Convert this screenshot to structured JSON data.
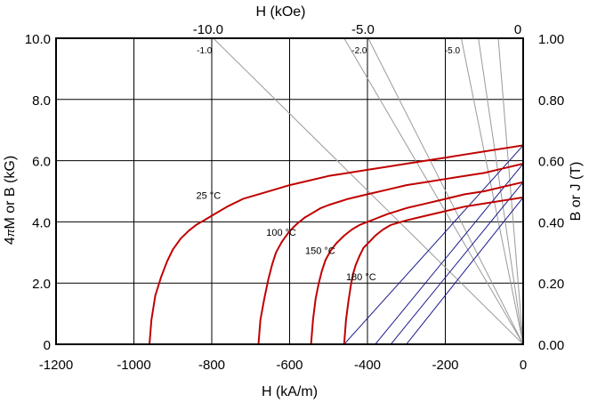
{
  "chart_data": {
    "type": "line",
    "title": "",
    "xlabel": "H (kA/m)",
    "x2label": "H (kOe)",
    "ylabel": "4πM or B (kG)",
    "ylabel_prefix": "4",
    "ylabel_pi": "π",
    "ylabel_suffix": "M or B (kG)",
    "y2label": "B or J  (T)",
    "xlim": [
      -1200,
      0
    ],
    "ylim": [
      0,
      10
    ],
    "x2lim": [
      -15.08,
      0
    ],
    "y2lim": [
      0,
      1
    ],
    "grid": true,
    "x_ticks": [
      -1200,
      -1000,
      -800,
      -600,
      -400,
      -200,
      0
    ],
    "x_tick_labels": [
      "-1200",
      "-1000",
      "-800",
      "-600",
      "-400",
      "-200",
      "0"
    ],
    "y_ticks": [
      0,
      2,
      4,
      6,
      8,
      10
    ],
    "y_tick_labels": [
      "0",
      "2.0",
      "4.0",
      "6.0",
      "8.0",
      "10.0"
    ],
    "x2_ticks": [
      -10,
      -5,
      0
    ],
    "x2_tick_labels": [
      "-10.0",
      "-5.0",
      "0"
    ],
    "y2_ticks": [
      0,
      0.2,
      0.4,
      0.6,
      0.8,
      1.0
    ],
    "y2_tick_labels": [
      "0.00",
      "0.20",
      "0.40",
      "0.60",
      "0.80",
      "1.00"
    ],
    "load_lines": [
      {
        "label": "-1.0",
        "x_at_top": -796
      },
      {
        "label": "-2.0",
        "x_at_top": -398
      },
      {
        "label": "-5.0",
        "x_at_top": -159
      }
    ],
    "extra_load_lines_x_at_top": [
      -460,
      -115,
      -64
    ],
    "series": [
      {
        "name": "25 °C",
        "color": "#c00000",
        "x": [
          -960,
          -955,
          -945,
          -930,
          -915,
          -900,
          -880,
          -860,
          -840,
          -820,
          -800,
          -760,
          -720,
          -680,
          -640,
          -600,
          -550,
          -500,
          -450,
          -400,
          -350,
          -300,
          -250,
          -200,
          -150,
          -100,
          -50,
          0
        ],
        "y": [
          0,
          0.8,
          1.6,
          2.2,
          2.7,
          3.1,
          3.45,
          3.7,
          3.9,
          4.05,
          4.2,
          4.5,
          4.75,
          4.9,
          5.05,
          5.2,
          5.35,
          5.5,
          5.6,
          5.7,
          5.8,
          5.9,
          6.0,
          6.1,
          6.2,
          6.3,
          6.4,
          6.5
        ]
      },
      {
        "name": "100 °C",
        "color": "#c00000",
        "x": [
          -680,
          -675,
          -665,
          -655,
          -645,
          -635,
          -620,
          -600,
          -580,
          -560,
          -540,
          -520,
          -500,
          -450,
          -400,
          -350,
          -300,
          -250,
          -200,
          -150,
          -100,
          -50,
          0
        ],
        "y": [
          0,
          0.8,
          1.5,
          2.1,
          2.6,
          3.0,
          3.35,
          3.7,
          3.95,
          4.15,
          4.3,
          4.45,
          4.55,
          4.75,
          4.9,
          5.05,
          5.2,
          5.3,
          5.4,
          5.5,
          5.6,
          5.75,
          5.9
        ]
      },
      {
        "name": "150 °C",
        "color": "#c00000",
        "x": [
          -545,
          -540,
          -533,
          -525,
          -517,
          -508,
          -495,
          -480,
          -460,
          -440,
          -420,
          -400,
          -380,
          -350,
          -300,
          -250,
          -200,
          -150,
          -100,
          -50,
          0
        ],
        "y": [
          0,
          0.8,
          1.5,
          2.0,
          2.4,
          2.75,
          3.05,
          3.3,
          3.55,
          3.75,
          3.9,
          4.0,
          4.1,
          4.25,
          4.45,
          4.6,
          4.75,
          4.9,
          5.0,
          5.15,
          5.3
        ]
      },
      {
        "name": "180 °C",
        "color": "#c00000",
        "x": [
          -460,
          -455,
          -449,
          -443,
          -437,
          -430,
          -420,
          -410,
          -395,
          -380,
          -360,
          -340,
          -300,
          -250,
          -200,
          -150,
          -100,
          -50,
          0
        ],
        "y": [
          0,
          0.8,
          1.4,
          1.9,
          2.3,
          2.6,
          2.9,
          3.15,
          3.35,
          3.55,
          3.75,
          3.9,
          4.05,
          4.2,
          4.35,
          4.5,
          4.6,
          4.7,
          4.8
        ]
      }
    ],
    "recoil_lines": [
      {
        "x1": -460,
        "y1": 0,
        "x2": 0,
        "y2": 6.5
      },
      {
        "x1": -380,
        "y1": 0,
        "x2": 0,
        "y2": 5.9
      },
      {
        "x1": -340,
        "y1": 0,
        "x2": 0,
        "y2": 5.3
      },
      {
        "x1": -300,
        "y1": 0,
        "x2": 0,
        "y2": 4.8
      }
    ],
    "colors": {
      "curve": "#c00000",
      "recoil": "#1a1a8c",
      "load": "#9a9a9a",
      "grid": "#000000"
    }
  }
}
